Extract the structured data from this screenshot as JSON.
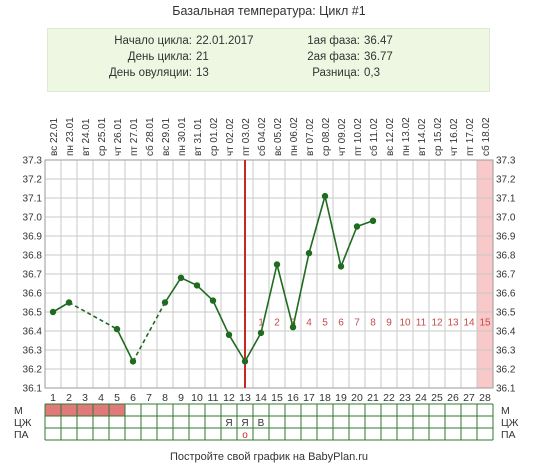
{
  "title": "Базальная температура: Цикл #1",
  "info": {
    "cycle_start_label": "Начало цикла:",
    "cycle_start_value": "22.01.2017",
    "cycle_day_label": "День цикла:",
    "cycle_day_value": "21",
    "ovulation_day_label": "День овуляции:",
    "ovulation_day_value": "13",
    "phase1_label": "1ая фаза:",
    "phase1_value": "36.47",
    "phase2_label": "2ая фаза:",
    "phase2_value": "36.77",
    "diff_label": "Разница:",
    "diff_value": "0,3"
  },
  "footer": "Постройте свой график на BabyPlan.ru",
  "chart_data": {
    "type": "line",
    "ylim": [
      36.1,
      37.3
    ],
    "y_ticks": [
      "36.1",
      "36.2",
      "36.3",
      "36.4",
      "36.5",
      "36.6",
      "36.7",
      "36.8",
      "36.9",
      "37.0",
      "37.1",
      "37.2",
      "37.3"
    ],
    "days": [
      1,
      2,
      3,
      4,
      5,
      6,
      7,
      8,
      9,
      10,
      11,
      12,
      13,
      14,
      15,
      16,
      17,
      18,
      19,
      20,
      21,
      22,
      23,
      24,
      25,
      26,
      27,
      28
    ],
    "weekdays": [
      "вс",
      "пн",
      "вт",
      "ср",
      "чт",
      "пт",
      "сб",
      "вс",
      "пн",
      "вт",
      "ср",
      "чт",
      "пт",
      "сб",
      "вс",
      "пн",
      "вт",
      "ср",
      "чт",
      "пт",
      "сб",
      "вс",
      "пн",
      "вт",
      "ср",
      "чт",
      "пт",
      "сб"
    ],
    "dates": [
      "22.01",
      "23.01",
      "24.01",
      "25.01",
      "26.01",
      "27.01",
      "28.01",
      "29.01",
      "30.01",
      "31.01",
      "01.02",
      "02.02",
      "03.02",
      "04.02",
      "05.02",
      "06.02",
      "07.02",
      "08.02",
      "09.02",
      "10.02",
      "11.02",
      "12.02",
      "13.02",
      "14.02",
      "15.02",
      "16.02",
      "17.02",
      "18.02"
    ],
    "temperatures": [
      36.5,
      36.55,
      null,
      null,
      36.41,
      36.24,
      null,
      36.55,
      36.68,
      36.64,
      36.56,
      36.38,
      36.24,
      36.39,
      36.75,
      36.42,
      36.81,
      37.11,
      36.74,
      36.95,
      36.98,
      null,
      null,
      null,
      null,
      null,
      null,
      null
    ],
    "dashed_segments": [
      [
        2,
        5
      ],
      [
        6,
        8
      ]
    ],
    "ovulation_day": 13,
    "highlighted_day": 28,
    "phase2_day_labels": [
      "1",
      "2",
      "3",
      "4",
      "5",
      "6",
      "7",
      "8",
      "9",
      "10",
      "11",
      "12",
      "13",
      "14",
      "15"
    ],
    "rows": {
      "labels": [
        "М",
        "ЦЖ",
        "ПА"
      ],
      "menstruation_days": [
        1,
        2,
        3,
        4,
        5
      ],
      "cervical_marks": [
        {
          "day": 12,
          "text": "Я"
        },
        {
          "day": 13,
          "text": "Я"
        },
        {
          "day": 14,
          "text": "В"
        }
      ],
      "intercourse_marks": [
        {
          "day": 13,
          "text": "o"
        }
      ]
    },
    "colors": {
      "line": "#1f6b1f",
      "point": "#1f6b1f",
      "ovulation_line": "#c62828",
      "menstruation": "#e07a7a",
      "highlight": "#f9c9c9",
      "phase2_numbers": "#c44a4a",
      "info_bg": "#edf7e2"
    }
  }
}
